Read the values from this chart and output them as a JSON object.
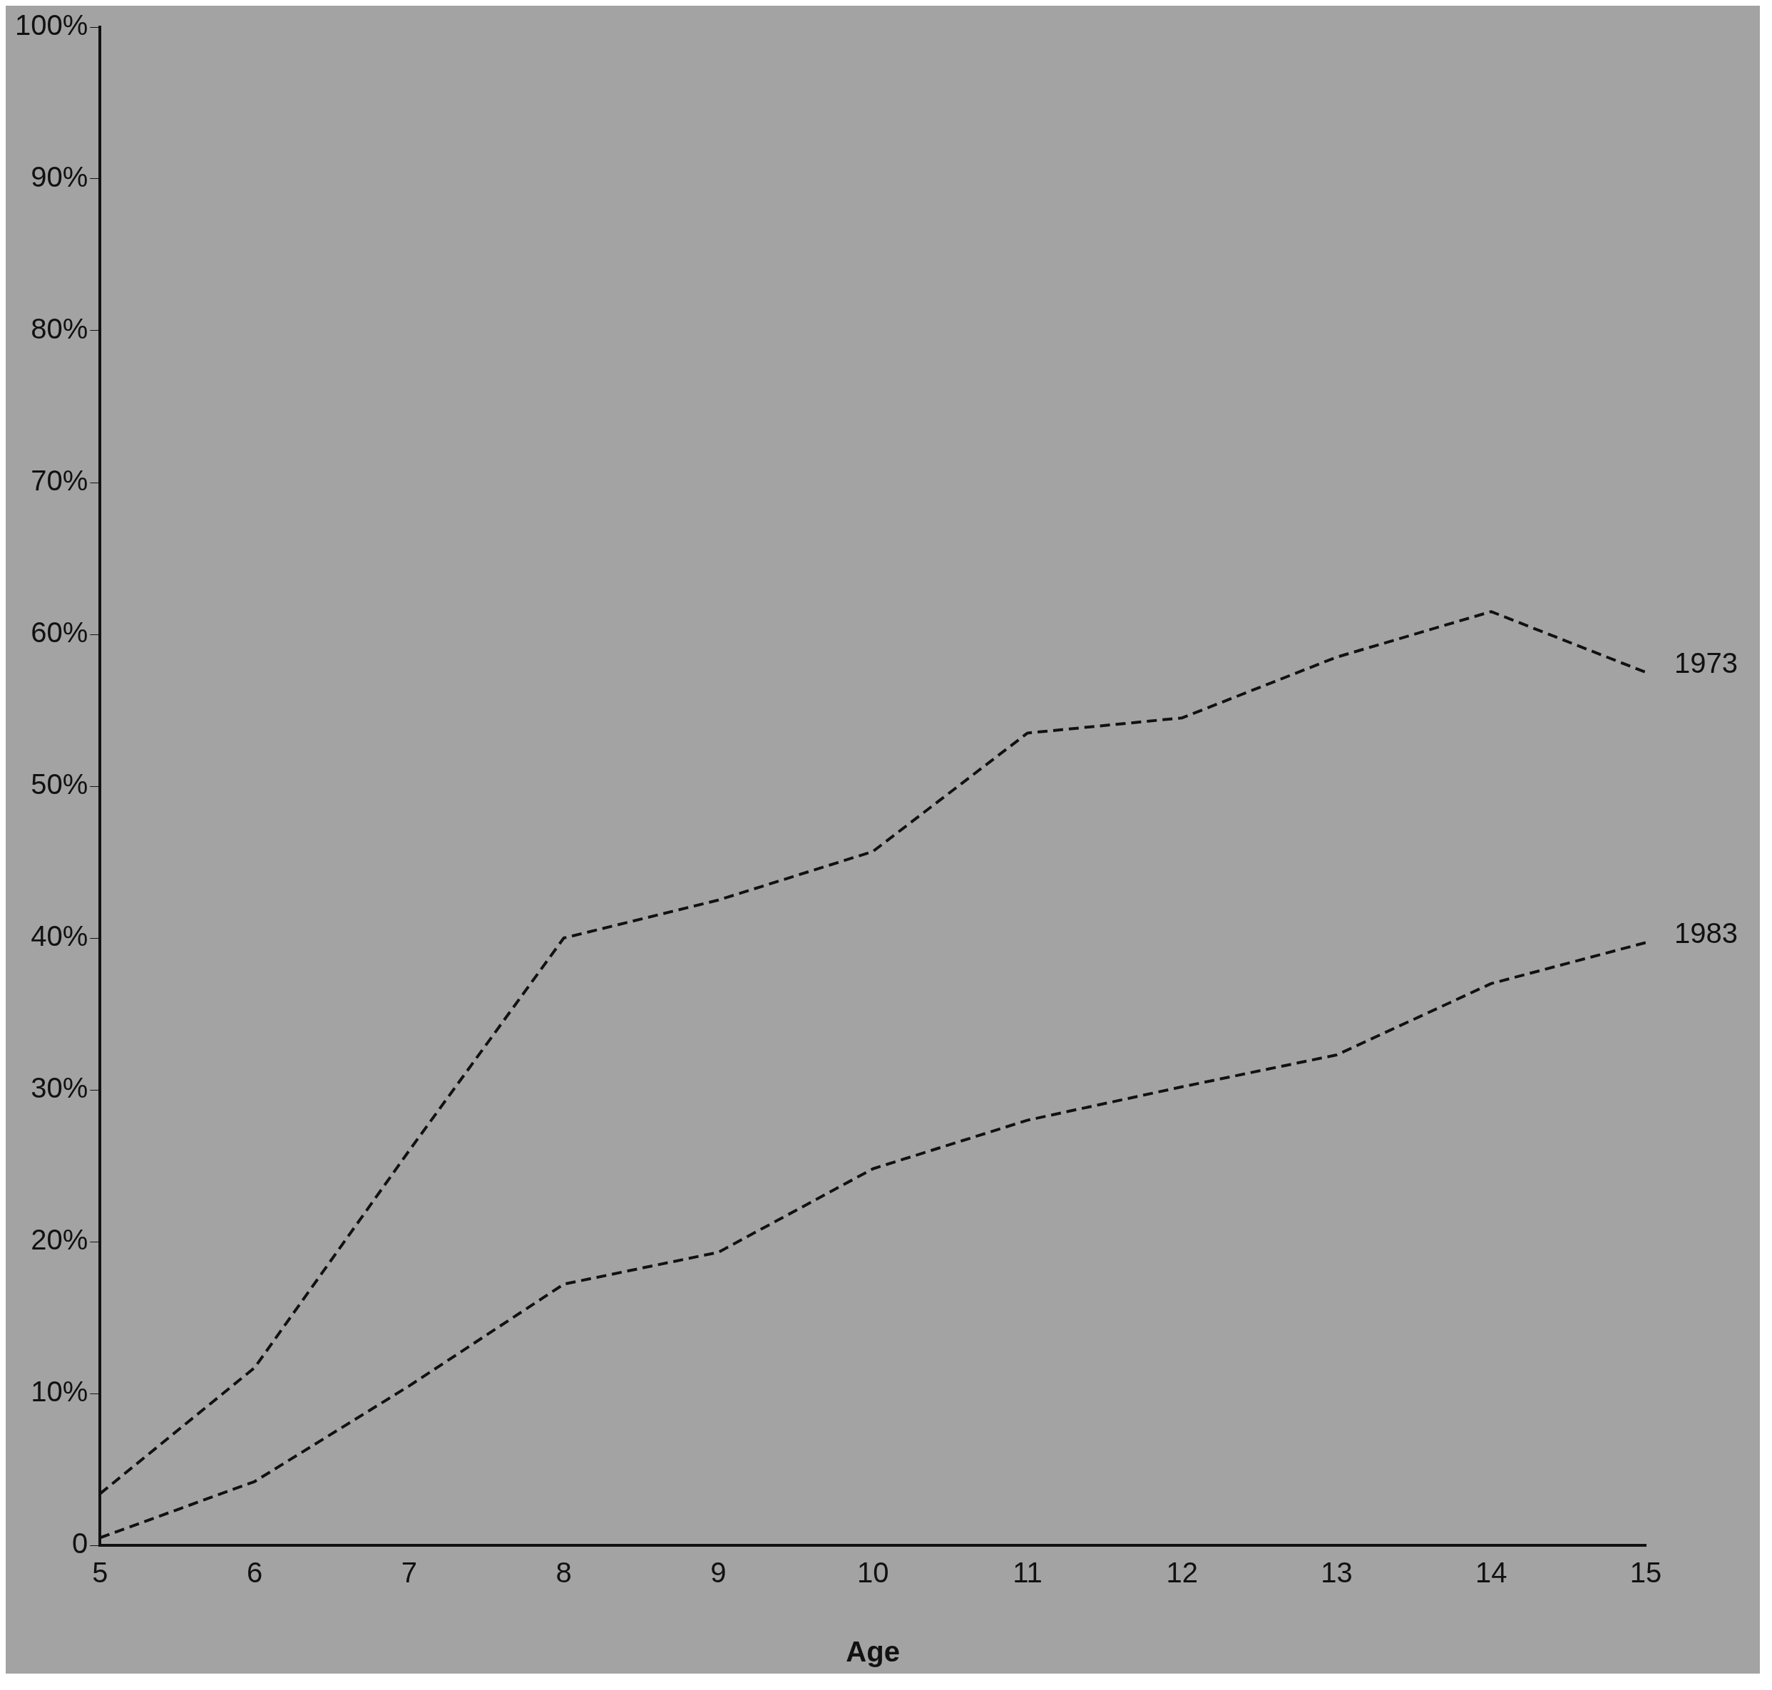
{
  "chart_data": {
    "type": "line",
    "xlabel": "Age",
    "x": [
      5,
      6,
      7,
      8,
      9,
      10,
      11,
      12,
      13,
      14,
      15
    ],
    "series": [
      {
        "name": "1973",
        "color": "#111111",
        "values": [
          3.4,
          11.7,
          26,
          40,
          42.5,
          45.7,
          53.5,
          54.5,
          58.5,
          61.5,
          57.5
        ]
      },
      {
        "name": "1983",
        "color": "#111111",
        "values": [
          0.5,
          4.2,
          10.5,
          17.2,
          19.3,
          24.8,
          28,
          30.2,
          32.3,
          37,
          39.7
        ]
      }
    ],
    "xlim": [
      5,
      15
    ],
    "xticks": [
      5,
      6,
      7,
      8,
      9,
      10,
      11,
      12,
      13,
      14,
      15
    ],
    "ylim": [
      0,
      100
    ],
    "yticks": [
      {
        "value": 0,
        "label": "0"
      },
      {
        "value": 10,
        "label": "10%"
      },
      {
        "value": 20,
        "label": "20%"
      },
      {
        "value": 30,
        "label": "30%"
      },
      {
        "value": 40,
        "label": "40%"
      },
      {
        "value": 50,
        "label": "50%"
      },
      {
        "value": 60,
        "label": "60%"
      },
      {
        "value": 70,
        "label": "70%"
      },
      {
        "value": 80,
        "label": "80%"
      },
      {
        "value": 90,
        "label": "90%"
      },
      {
        "value": 100,
        "label": "100%"
      }
    ],
    "grid": false,
    "legend": false,
    "marker": "none",
    "line_style": "dashed"
  }
}
